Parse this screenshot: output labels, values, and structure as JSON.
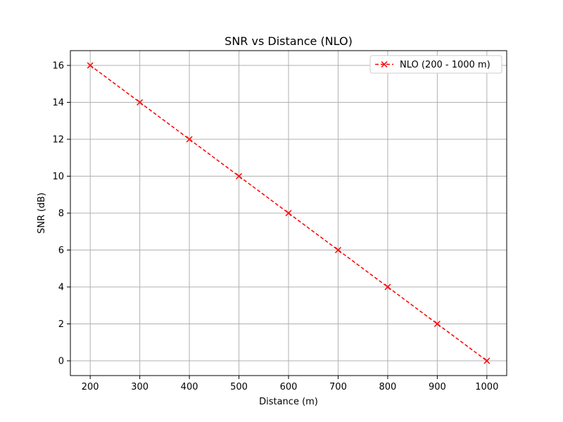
{
  "chart_data": {
    "type": "line",
    "title": "SNR vs Distance (NLO)",
    "xlabel": "Distance (m)",
    "ylabel": "SNR (dB)",
    "xlim": [
      160,
      1040
    ],
    "ylim": [
      -0.8,
      16.8
    ],
    "xticks": [
      200,
      300,
      400,
      500,
      600,
      700,
      800,
      900,
      1000
    ],
    "yticks": [
      0,
      2,
      4,
      6,
      8,
      10,
      12,
      14,
      16
    ],
    "grid": true,
    "legend_position": "upper-right",
    "series": [
      {
        "name": "NLO (200 - 1000 m)",
        "color": "#ff0000",
        "line_style": "dashed",
        "marker": "x",
        "x": [
          200,
          300,
          400,
          500,
          600,
          700,
          800,
          900,
          1000
        ],
        "y": [
          16,
          14,
          12,
          10,
          8,
          6,
          4,
          2,
          0
        ]
      }
    ]
  }
}
